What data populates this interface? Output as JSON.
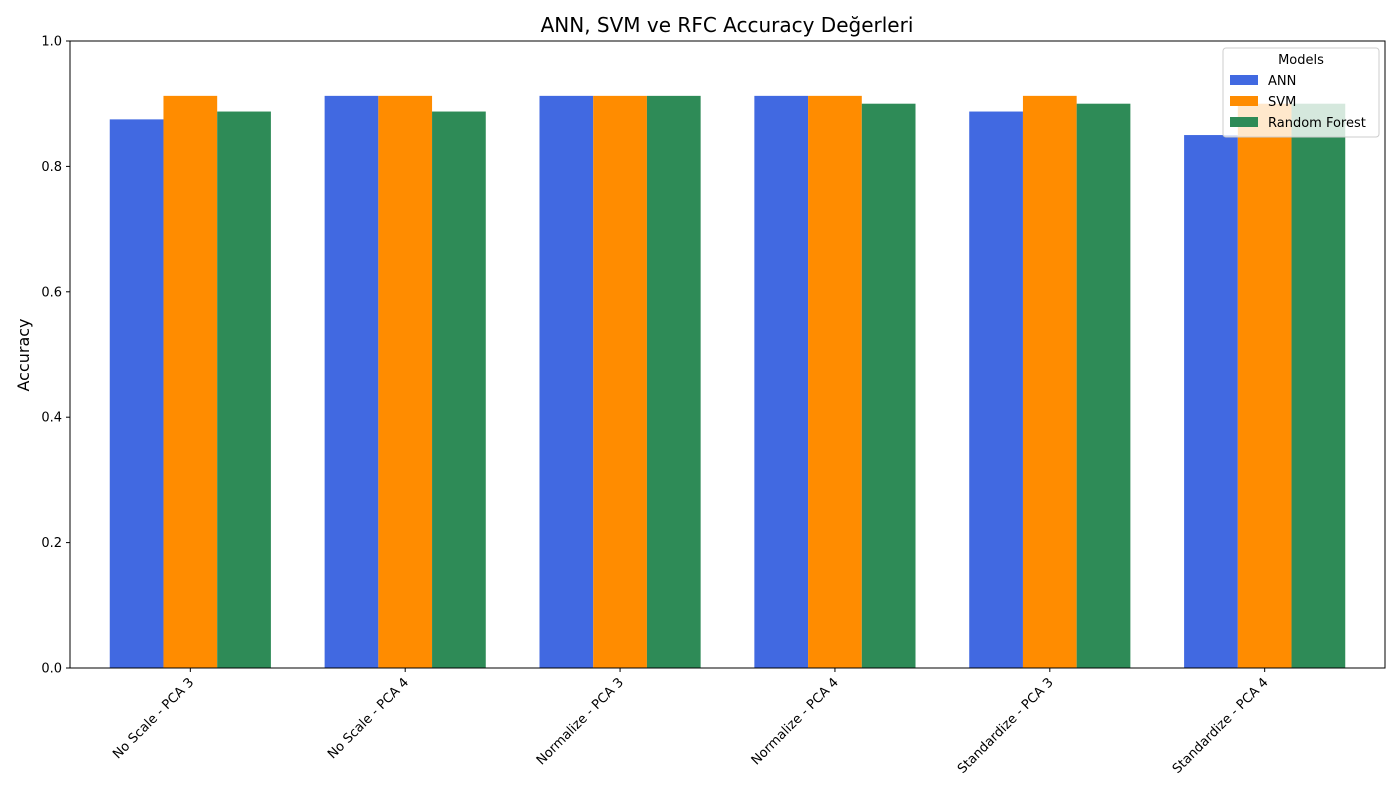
{
  "chart_data": {
    "type": "bar",
    "title": "ANN, SVM ve RFC Accuracy Değerleri",
    "xlabel": "",
    "ylabel": "Accuracy",
    "ylim": [
      0,
      1.0
    ],
    "yticks": [
      "0.0",
      "0.2",
      "0.4",
      "0.6",
      "0.8",
      "1.0"
    ],
    "grid": false,
    "legend": {
      "title": "Models",
      "placement": "top-right"
    },
    "categories": [
      "No Scale - PCA 3",
      "No Scale - PCA 4",
      "Normalize - PCA 3",
      "Normalize - PCA 4",
      "Standardize - PCA 3",
      "Standardize - PCA 4"
    ],
    "series": [
      {
        "name": "ANN",
        "color": "#4169e1",
        "values": [
          0.875,
          0.9125,
          0.9125,
          0.9125,
          0.8875,
          0.85
        ]
      },
      {
        "name": "SVM",
        "color": "#ff8c00",
        "values": [
          0.9125,
          0.9125,
          0.9125,
          0.9125,
          0.9125,
          0.9
        ]
      },
      {
        "name": "Random Forest",
        "color": "#2e8b57",
        "values": [
          0.8875,
          0.8875,
          0.9125,
          0.9,
          0.9,
          0.9
        ]
      }
    ]
  }
}
